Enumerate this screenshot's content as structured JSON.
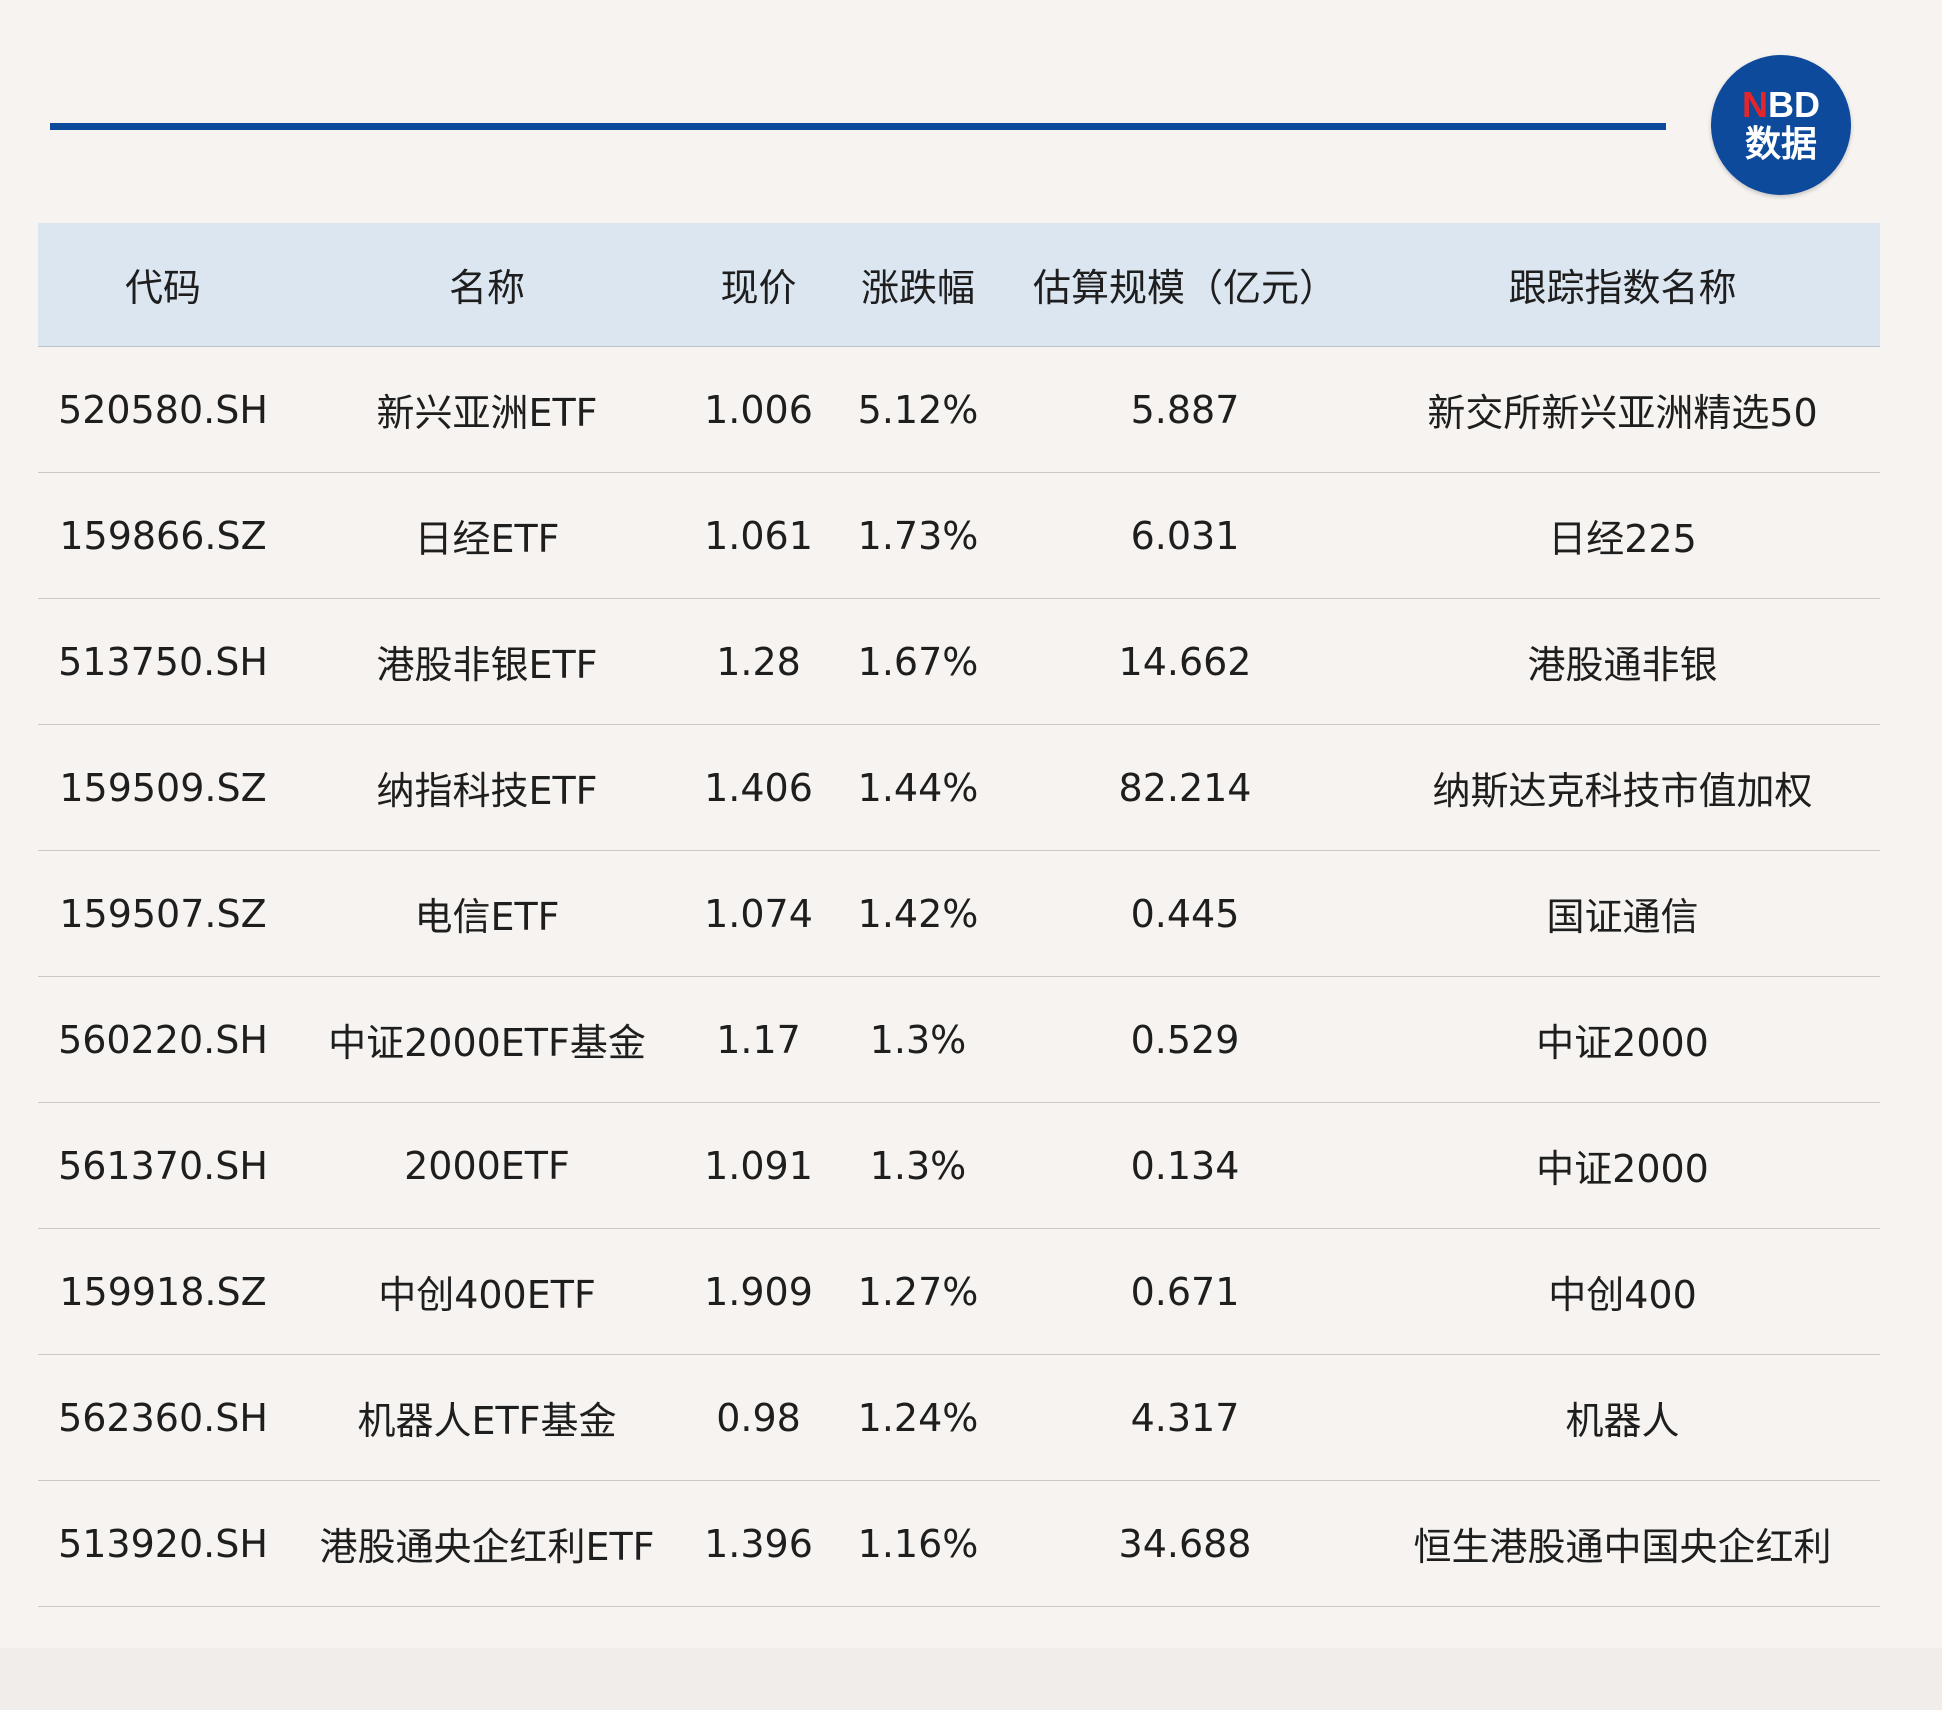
{
  "logo": {
    "brand_n": "N",
    "brand_rest": "BD",
    "subtitle": "数据"
  },
  "colors": {
    "accent": "#0d4a9c",
    "header_bg": "#dce6f1",
    "logo_red": "#e3262b"
  },
  "table": {
    "headers": [
      "代码",
      "名称",
      "现价",
      "涨跌幅",
      "估算规模（亿元）",
      "跟踪指数名称"
    ],
    "rows": [
      [
        "520580.SH",
        "新兴亚洲ETF",
        "1.006",
        "5.12%",
        "5.887",
        "新交所新兴亚洲精选50"
      ],
      [
        "159866.SZ",
        "日经ETF",
        "1.061",
        "1.73%",
        "6.031",
        "日经225"
      ],
      [
        "513750.SH",
        "港股非银ETF",
        "1.28",
        "1.67%",
        "14.662",
        "港股通非银"
      ],
      [
        "159509.SZ",
        "纳指科技ETF",
        "1.406",
        "1.44%",
        "82.214",
        "纳斯达克科技市值加权"
      ],
      [
        "159507.SZ",
        "电信ETF",
        "1.074",
        "1.42%",
        "0.445",
        "国证通信"
      ],
      [
        "560220.SH",
        "中证2000ETF基金",
        "1.17",
        "1.3%",
        "0.529",
        "中证2000"
      ],
      [
        "561370.SH",
        "2000ETF",
        "1.091",
        "1.3%",
        "0.134",
        "中证2000"
      ],
      [
        "159918.SZ",
        "中创400ETF",
        "1.909",
        "1.27%",
        "0.671",
        "中创400"
      ],
      [
        "562360.SH",
        "机器人ETF基金",
        "0.98",
        "1.24%",
        "4.317",
        "机器人"
      ],
      [
        "513920.SH",
        "港股通央企红利ETF",
        "1.396",
        "1.16%",
        "34.688",
        "恒生港股通中国央企红利"
      ]
    ]
  }
}
